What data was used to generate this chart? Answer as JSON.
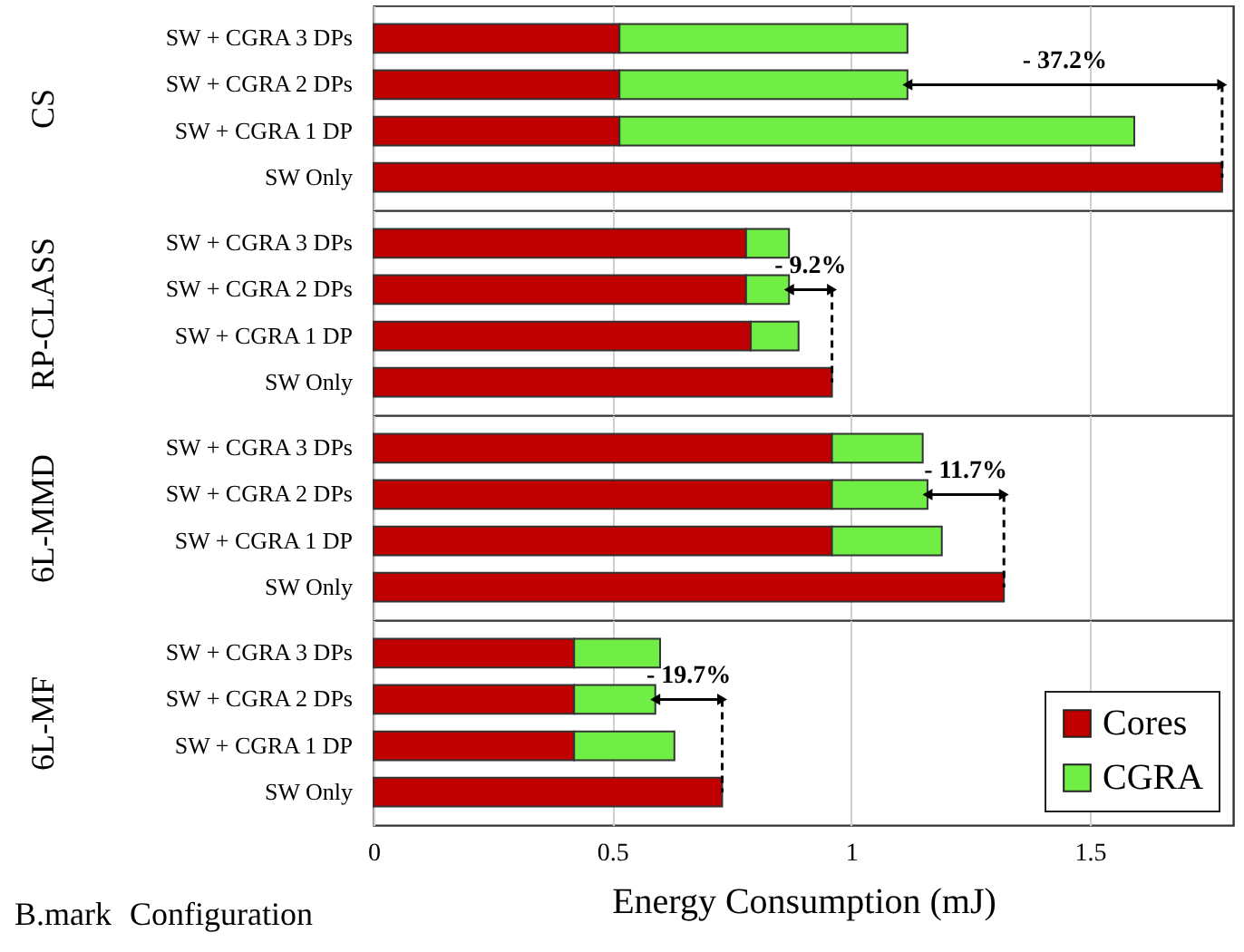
{
  "chart_data": [
    {
      "type": "bar",
      "orientation": "horizontal",
      "stacked": true,
      "ylabel": "CS",
      "categories": [
        "SW + CGRA 3 DPs",
        "SW + CGRA 2 DPs",
        "SW + CGRA 1 DP",
        "SW Only"
      ],
      "series": [
        {
          "color": "#c00000",
          "values": [
            0.515,
            0.515,
            0.515,
            1.777
          ]
        },
        {
          "color": "#70ee46",
          "values": [
            0.603,
            0.603,
            1.078,
            null
          ]
        }
      ],
      "xlim": [
        0,
        1.8
      ],
      "xticks": [
        0,
        0.5,
        1,
        1.5
      ],
      "grid": "x",
      "tick_labels": "y",
      "annotations": [
        "- 37.2%"
      ]
    },
    {
      "type": "bar",
      "orientation": "horizontal",
      "stacked": true,
      "ylabel": "RP-CLASS",
      "categories": [
        "SW + CGRA 3 DPs",
        "SW + CGRA 2 DPs",
        "SW + CGRA 1 DP",
        "SW Only"
      ],
      "series": [
        {
          "color": "#c00000",
          "values": [
            0.78,
            0.78,
            0.79,
            0.96
          ]
        },
        {
          "color": "#70ee46",
          "values": [
            0.09,
            0.09,
            0.1,
            null
          ]
        }
      ],
      "xlim": [
        0,
        1.8
      ],
      "xticks": [
        0,
        0.5,
        1,
        1.5
      ],
      "grid": "x",
      "tick_labels": "y",
      "annotations": [
        {
          "text": "- 9.2%",
          "x": 0.96,
          "y": "SW Only"
        }
      ]
    },
    {
      "type": "bar",
      "orientation": "horizontal",
      "stacked": true,
      "ylabel": "6L-MMD",
      "categories": [
        "SW + CGRA 3 DPs",
        "SW + CGRA 2 DPs",
        "SW + CGRA 1 DP",
        "SW Only"
      ],
      "series": [
        {
          "color": "#c00000",
          "values": [
            0.96,
            0.96,
            0.96,
            1.32
          ]
        },
        {
          "color": "#70ee46",
          "values": [
            0.19,
            0.2,
            0.23,
            null
          ]
        }
      ],
      "xlim": [
        0,
        1.8
      ],
      "xticks": [
        0,
        0.5,
        1,
        1.5
      ],
      "grid": "x",
      "tick_labels": "y",
      "annotations": [
        {
          "text": "- 11.7%",
          "x": 1.32,
          "y": "SW Only"
        }
      ]
    },
    {
      "type": "bar",
      "orientation": "horizontal",
      "stacked": true,
      "ylabel": "6L-MF",
      "xlabel": "Energy Consumption (mJ)",
      "categories": [
        "SW + CGRA 3 DPs",
        "SW + CGRA 2 DPs",
        "SW + CGRA 1 DP",
        "SW Only"
      ],
      "series": [
        {
          "name": "Cores",
          "color": "#c00000",
          "values": [
            0.42,
            0.42,
            0.42,
            0.73
          ]
        },
        {
          "name": "CGRA",
          "color": "#70ee46",
          "values": [
            0.18,
            0.17,
            0.21,
            null
          ]
        }
      ],
      "xlim": [
        0,
        1.8
      ],
      "xticks": [
        0,
        0.5,
        1,
        1.5
      ],
      "grid": "x",
      "legend": "bottom right",
      "annotations": [
        {
          "text": "- 19.7%",
          "x": 0.73,
          "y": "SW Only"
        },
        "B.mark",
        "Configuration"
      ]
    }
  ]
}
